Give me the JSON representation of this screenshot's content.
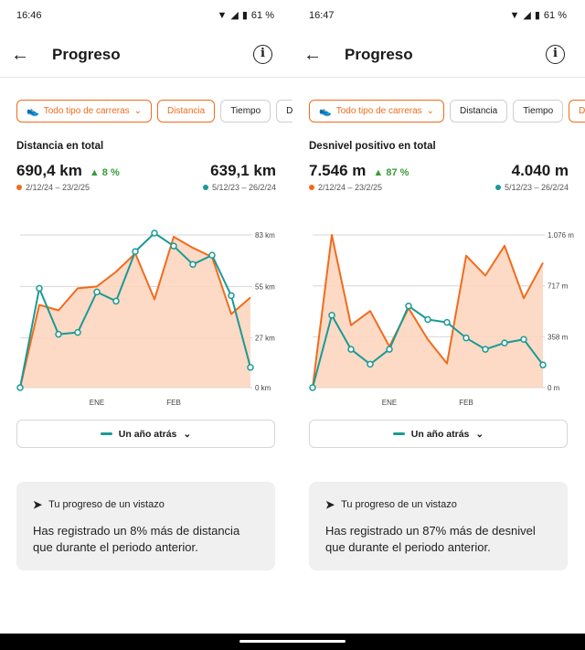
{
  "colors": {
    "accent": "#f26b1d",
    "current": "#f26b1d",
    "previous": "#1a9a94",
    "fill": "#fcd6c0",
    "positive": "#3a9a3a"
  },
  "panels": [
    {
      "status": {
        "time": "16:46",
        "battery": "61 %"
      },
      "header": {
        "back_icon": "arrow-left-icon",
        "title": "Progreso",
        "info_icon": "info-icon"
      },
      "filters": [
        {
          "label": "Todo tipo de carreras",
          "icon": "shoe-icon",
          "dropdown": true,
          "active": true
        },
        {
          "label": "Distancia",
          "active": true
        },
        {
          "label": "Tiempo",
          "active": false
        },
        {
          "label": "Desnivel",
          "active": false
        }
      ],
      "section_title": "Distancia en total",
      "current_total": "690,4 km",
      "change": "8 %",
      "previous_total": "639,1 km",
      "current_range": "2/12/24 – 23/2/25",
      "previous_range": "5/12/23 – 26/2/24",
      "selector_label": "Un año atrás",
      "insight": {
        "title": "Tu progreso de un vistazo",
        "body": "Has registrado un 8% más de distancia que durante el periodo anterior."
      },
      "chart_data": {
        "type": "line",
        "y_unit": "km",
        "ylim": [
          0,
          83
        ],
        "ytick_labels": [
          "83 km",
          "55 km",
          "27 km",
          "0 km"
        ],
        "ytick_values": [
          83,
          55,
          27,
          0
        ],
        "xtick_labels": [
          "ENE",
          "FEB"
        ],
        "xtick_positions": [
          4,
          8
        ],
        "series": [
          {
            "role": "current",
            "fill": true,
            "markers": false,
            "values": [
              0,
              45,
              42,
              54,
              55,
              63,
              73,
              48,
              82,
              76,
              71,
              40,
              49
            ]
          },
          {
            "role": "previous",
            "fill": false,
            "markers": true,
            "values": [
              0,
              54,
              29,
              30,
              52,
              47,
              74,
              84,
              77,
              67,
              72,
              50,
              11
            ]
          }
        ]
      }
    },
    {
      "status": {
        "time": "16:47",
        "battery": "61 %"
      },
      "header": {
        "back_icon": "arrow-left-icon",
        "title": "Progreso",
        "info_icon": "info-icon"
      },
      "filters": [
        {
          "label": "Todo tipo de carreras",
          "icon": "shoe-icon",
          "dropdown": true,
          "active": true
        },
        {
          "label": "Distancia",
          "active": false
        },
        {
          "label": "Tiempo",
          "active": false
        },
        {
          "label": "Desnive",
          "active": true
        }
      ],
      "section_title": "Desnivel positivo en total",
      "current_total": "7.546 m",
      "change": "87 %",
      "previous_total": "4.040 m",
      "current_range": "2/12/24 – 23/2/25",
      "previous_range": "5/12/23 – 26/2/24",
      "selector_label": "Un año atrás",
      "insight": {
        "title": "Tu progreso de un vistazo",
        "body": "Has registrado un 87% más de desnivel que durante el periodo anterior."
      },
      "chart_data": {
        "type": "line",
        "y_unit": "m",
        "ylim": [
          0,
          1076
        ],
        "ytick_labels": [
          "1.076 m",
          "717 m",
          "358 m",
          "0 m"
        ],
        "ytick_values": [
          1076,
          717,
          358,
          0
        ],
        "xtick_labels": [
          "ENE",
          "FEB"
        ],
        "xtick_positions": [
          4,
          8
        ],
        "series": [
          {
            "role": "current",
            "fill": true,
            "markers": false,
            "values": [
              0,
              1076,
              440,
              540,
              290,
              560,
              340,
              170,
              930,
              790,
              1000,
              630,
              880
            ]
          },
          {
            "role": "previous",
            "fill": false,
            "markers": true,
            "values": [
              0,
              510,
              270,
              165,
              270,
              575,
              480,
              460,
              350,
              270,
              315,
              340,
              160
            ]
          }
        ]
      }
    }
  ]
}
